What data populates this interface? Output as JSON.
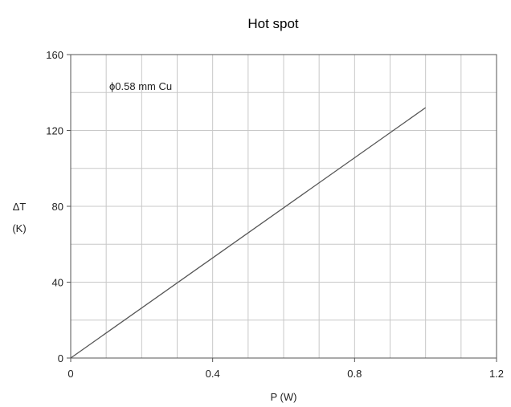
{
  "chart_data": {
    "type": "line",
    "title": "Hot spot",
    "xlabel": "P (W)",
    "ylabel_line1": "ΔT",
    "ylabel_line2": "(K)",
    "annotation": "ϕ0.58 mm Cu",
    "xlim": [
      0,
      1.2
    ],
    "ylim": [
      0,
      160
    ],
    "x_ticks": [
      0,
      0.4,
      0.8,
      1.2
    ],
    "x_tick_labels": [
      "0",
      "0.4",
      "0.8",
      "1.2"
    ],
    "y_ticks": [
      0,
      40,
      80,
      120,
      160
    ],
    "y_tick_labels": [
      "0",
      "40",
      "80",
      "120",
      "160"
    ],
    "grid": true,
    "series": [
      {
        "x": [
          0,
          1.0
        ],
        "y": [
          0,
          132
        ]
      }
    ]
  }
}
